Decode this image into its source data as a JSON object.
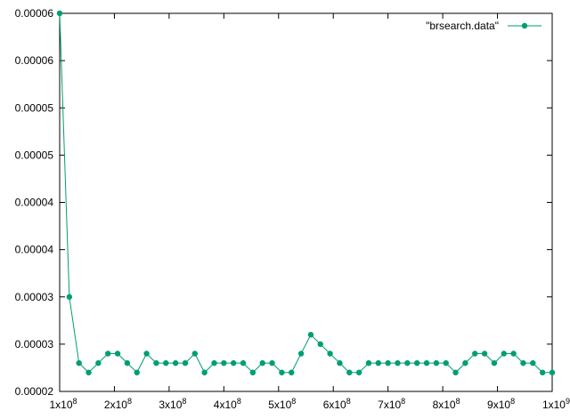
{
  "chart_data": {
    "type": "line",
    "title": "",
    "xlabel": "",
    "ylabel": "",
    "xlim": [
      100000000,
      1000000000
    ],
    "ylim": [
      2e-05,
      6e-05
    ],
    "grid": false,
    "legend_position": "top-right",
    "x_ticks": [
      100000000,
      200000000,
      300000000,
      400000000,
      500000000,
      600000000,
      700000000,
      800000000,
      900000000,
      1000000000
    ],
    "x_tick_labels": [
      {
        "base": "1x10",
        "exp": "8"
      },
      {
        "base": "2x10",
        "exp": "8"
      },
      {
        "base": "3x10",
        "exp": "8"
      },
      {
        "base": "4x10",
        "exp": "8"
      },
      {
        "base": "5x10",
        "exp": "8"
      },
      {
        "base": "6x10",
        "exp": "8"
      },
      {
        "base": "7x10",
        "exp": "8"
      },
      {
        "base": "8x10",
        "exp": "8"
      },
      {
        "base": "9x10",
        "exp": "8"
      },
      {
        "base": "1x10",
        "exp": "9"
      }
    ],
    "y_ticks": [
      2e-05,
      2.5e-05,
      3e-05,
      3.5e-05,
      4e-05,
      4.5e-05,
      5e-05,
      5.5e-05,
      6e-05
    ],
    "y_tick_labels": [
      "0.00002",
      "0.00003",
      "0.00003",
      "0.00004",
      "0.00004",
      "0.00005",
      "0.00005",
      "0.00006",
      "0.00006"
    ],
    "series": [
      {
        "name": "\"brsearch.data\"",
        "color": "#009e73",
        "x": [
          100000000,
          117647059,
          135294118,
          152941176,
          170588235,
          188235294,
          205882353,
          223529412,
          241176471,
          258823529,
          276470588,
          294117647,
          311764706,
          329411765,
          347058824,
          364705882,
          382352941,
          400000000,
          417647059,
          435294118,
          452941176,
          470588235,
          488235294,
          505882353,
          523529412,
          541176471,
          558823529,
          576470588,
          594117647,
          611764706,
          629411765,
          647058824,
          664705882,
          682352941,
          700000000,
          717647059,
          735294118,
          752941176,
          770588235,
          788235294,
          805882353,
          823529412,
          841176471,
          858823529,
          876470588,
          894117647,
          911764706,
          929411765,
          947058824,
          964705882,
          982352941,
          1000000000
        ],
        "y": [
          6e-05,
          3e-05,
          2.3e-05,
          2.2e-05,
          2.3e-05,
          2.4e-05,
          2.4e-05,
          2.3e-05,
          2.2e-05,
          2.4e-05,
          2.3e-05,
          2.3e-05,
          2.3e-05,
          2.3e-05,
          2.4e-05,
          2.2e-05,
          2.3e-05,
          2.3e-05,
          2.3e-05,
          2.3e-05,
          2.2e-05,
          2.3e-05,
          2.3e-05,
          2.2e-05,
          2.2e-05,
          2.4e-05,
          2.6e-05,
          2.5e-05,
          2.4e-05,
          2.3e-05,
          2.2e-05,
          2.2e-05,
          2.3e-05,
          2.3e-05,
          2.3e-05,
          2.3e-05,
          2.3e-05,
          2.3e-05,
          2.3e-05,
          2.3e-05,
          2.3e-05,
          2.2e-05,
          2.3e-05,
          2.4e-05,
          2.4e-05,
          2.3e-05,
          2.4e-05,
          2.4e-05,
          2.3e-05,
          2.3e-05,
          2.2e-05,
          2.2e-05
        ]
      }
    ]
  }
}
